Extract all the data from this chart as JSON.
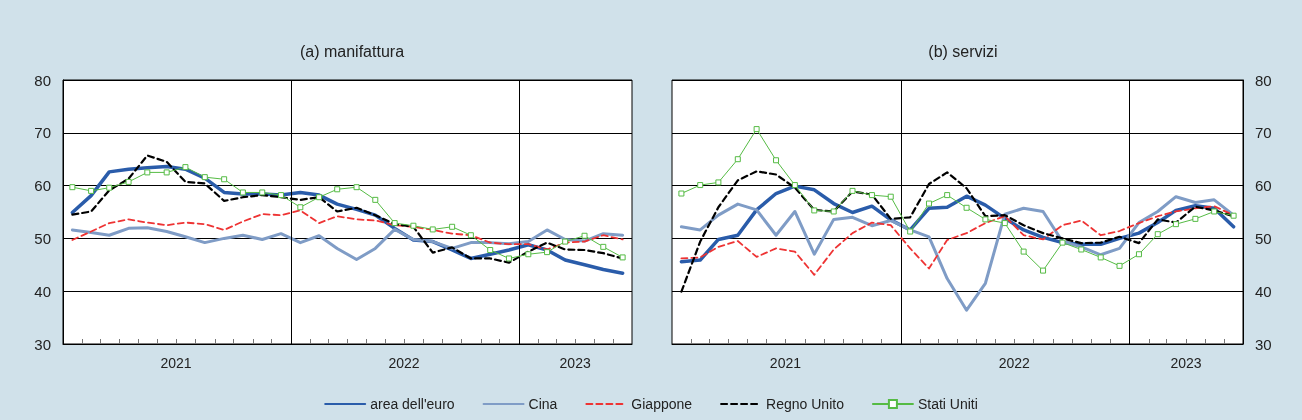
{
  "chart_data": [
    {
      "type": "line",
      "title": "(a) manifattura",
      "legend": "bottom",
      "grid": "y",
      "xlim": [
        "2021-01-01",
        "2023-07-01"
      ],
      "ylim": [
        30,
        80
      ],
      "yticks": [
        30,
        40,
        50,
        60,
        70,
        80
      ],
      "xticks": [
        {
          "value": "2021-07-01",
          "label": "2021"
        },
        {
          "value": "2022-07-01",
          "label": "2022"
        },
        {
          "value": "2023-04-01",
          "label": "2023"
        },
        {
          "value": "2021-02-01",
          "label": null
        },
        {
          "value": "2021-03-01",
          "label": null
        },
        {
          "value": "2021-04-01",
          "label": null
        },
        {
          "value": "2021-05-01",
          "label": null
        },
        {
          "value": "2021-06-01",
          "label": null
        },
        {
          "value": "2021-08-01",
          "label": null
        },
        {
          "value": "2021-09-01",
          "label": null
        },
        {
          "value": "2021-10-01",
          "label": null
        },
        {
          "value": "2021-11-01",
          "label": null
        },
        {
          "value": "2021-12-01",
          "label": null
        },
        {
          "value": "2022-02-01",
          "label": null
        },
        {
          "value": "2022-03-01",
          "label": null
        },
        {
          "value": "2022-04-01",
          "label": null
        },
        {
          "value": "2022-05-01",
          "label": null
        },
        {
          "value": "2022-06-01",
          "label": null
        },
        {
          "value": "2022-08-01",
          "label": null
        },
        {
          "value": "2022-09-01",
          "label": null
        },
        {
          "value": "2022-10-01",
          "label": null
        },
        {
          "value": "2022-11-01",
          "label": null
        },
        {
          "value": "2022-12-01",
          "label": null
        },
        {
          "value": "2023-02-01",
          "label": null
        },
        {
          "value": "2023-03-01",
          "label": null
        },
        {
          "value": "2023-05-01",
          "label": null
        },
        {
          "value": "2023-06-01",
          "label": null
        }
      ],
      "ref_lines": [
        {
          "axis": "x",
          "value": "2022-01-01",
          "color": "#000000"
        },
        {
          "axis": "x",
          "value": "2023-01-01",
          "color": "#000000"
        }
      ],
      "x": [
        "2021-01-16",
        "2021-02-15",
        "2021-03-16",
        "2021-04-16",
        "2021-05-16",
        "2021-06-16",
        "2021-07-16",
        "2021-08-16",
        "2021-09-16",
        "2021-10-16",
        "2021-11-16",
        "2021-12-16",
        "2022-01-16",
        "2022-02-15",
        "2022-03-16",
        "2022-04-16",
        "2022-05-16",
        "2022-06-16",
        "2022-07-16",
        "2022-08-16",
        "2022-09-16",
        "2022-10-16",
        "2022-11-16",
        "2022-12-16",
        "2023-01-16",
        "2023-02-15",
        "2023-03-16",
        "2023-04-16",
        "2023-05-16",
        "2023-06-16"
      ],
      "series": [
        {
          "name": "area dell'euro",
          "color": "#2a5caa",
          "line_style": "solid",
          "marker": "none",
          "values": [
            54.9,
            58.1,
            62.6,
            63.1,
            63.4,
            63.6,
            63.1,
            61.4,
            58.7,
            58.4,
            58.4,
            58.2,
            58.7,
            58.2,
            56.5,
            55.5,
            54.4,
            51.9,
            49.7,
            49.4,
            47.8,
            46.2,
            47.0,
            47.8,
            48.8,
            47.8,
            45.9,
            45.0,
            44.1,
            43.4
          ]
        },
        {
          "name": "Cina",
          "color": "#7f9cc6",
          "line_style": "solid",
          "marker": "none",
          "values": [
            51.6,
            51.1,
            50.6,
            51.9,
            52.0,
            51.3,
            50.3,
            49.2,
            50.0,
            50.6,
            49.8,
            50.9,
            49.2,
            50.5,
            48.1,
            46.0,
            48.1,
            51.7,
            49.8,
            49.4,
            48.1,
            49.2,
            49.2,
            49.0,
            49.4,
            51.6,
            49.8,
            49.5,
            50.9,
            50.6
          ]
        },
        {
          "name": "Giappone",
          "color": "#ee3333",
          "line_style": "dashed",
          "marker": "none",
          "values": [
            49.7,
            51.3,
            52.9,
            53.6,
            53.0,
            52.5,
            53.0,
            52.7,
            51.6,
            53.2,
            54.6,
            54.4,
            55.3,
            52.9,
            54.2,
            53.6,
            53.4,
            52.5,
            52.2,
            51.6,
            50.9,
            50.6,
            49.2,
            48.9,
            48.9,
            47.9,
            49.2,
            49.4,
            50.6,
            49.8
          ]
        },
        {
          "name": "Regno Unito",
          "color": "#000000",
          "line_style": "dashed",
          "marker": "none",
          "values": [
            54.5,
            55.1,
            59.1,
            61.3,
            65.7,
            64.5,
            60.7,
            60.4,
            57.1,
            57.8,
            58.2,
            57.8,
            57.3,
            57.8,
            55.1,
            55.8,
            54.4,
            52.7,
            52.2,
            47.3,
            48.3,
            46.2,
            46.2,
            45.4,
            47.5,
            49.2,
            47.9,
            47.8,
            47.2,
            46.2
          ]
        },
        {
          "name": "Stati Uniti",
          "color": "#55bb44",
          "line_style": "solid",
          "marker": "square",
          "values": [
            59.7,
            59.0,
            59.6,
            60.7,
            62.5,
            62.5,
            63.5,
            61.6,
            61.2,
            58.7,
            58.7,
            58.2,
            55.9,
            57.8,
            59.3,
            59.7,
            57.3,
            52.9,
            52.4,
            51.7,
            52.2,
            50.6,
            47.8,
            46.2,
            47.0,
            47.4,
            49.4,
            50.5,
            48.4,
            46.4
          ]
        }
      ]
    },
    {
      "type": "line",
      "title": "(b) servizi",
      "grid": "y",
      "xlim": [
        "2021-01-01",
        "2023-07-01"
      ],
      "ylim": [
        30,
        80
      ],
      "yticks": [
        30,
        40,
        50,
        60,
        70,
        80
      ],
      "xticks": [
        {
          "value": "2021-07-01",
          "label": "2021"
        },
        {
          "value": "2022-07-01",
          "label": "2022"
        },
        {
          "value": "2023-04-01",
          "label": "2023"
        },
        {
          "value": "2021-02-01",
          "label": null
        },
        {
          "value": "2021-03-01",
          "label": null
        },
        {
          "value": "2021-04-01",
          "label": null
        },
        {
          "value": "2021-05-01",
          "label": null
        },
        {
          "value": "2021-06-01",
          "label": null
        },
        {
          "value": "2021-08-01",
          "label": null
        },
        {
          "value": "2021-09-01",
          "label": null
        },
        {
          "value": "2021-10-01",
          "label": null
        },
        {
          "value": "2021-11-01",
          "label": null
        },
        {
          "value": "2021-12-01",
          "label": null
        },
        {
          "value": "2022-02-01",
          "label": null
        },
        {
          "value": "2022-03-01",
          "label": null
        },
        {
          "value": "2022-04-01",
          "label": null
        },
        {
          "value": "2022-05-01",
          "label": null
        },
        {
          "value": "2022-06-01",
          "label": null
        },
        {
          "value": "2022-08-01",
          "label": null
        },
        {
          "value": "2022-09-01",
          "label": null
        },
        {
          "value": "2022-10-01",
          "label": null
        },
        {
          "value": "2022-11-01",
          "label": null
        },
        {
          "value": "2022-12-01",
          "label": null
        },
        {
          "value": "2023-02-01",
          "label": null
        },
        {
          "value": "2023-03-01",
          "label": null
        },
        {
          "value": "2023-05-01",
          "label": null
        },
        {
          "value": "2023-06-01",
          "label": null
        }
      ],
      "ref_lines": [
        {
          "axis": "x",
          "value": "2022-01-01",
          "color": "#000000"
        },
        {
          "axis": "x",
          "value": "2023-01-01",
          "color": "#000000"
        }
      ],
      "x": [
        "2021-01-16",
        "2021-02-15",
        "2021-03-16",
        "2021-04-16",
        "2021-05-16",
        "2021-06-16",
        "2021-07-16",
        "2021-08-16",
        "2021-09-16",
        "2021-10-16",
        "2021-11-16",
        "2021-12-16",
        "2022-01-16",
        "2022-02-15",
        "2022-03-16",
        "2022-04-16",
        "2022-05-16",
        "2022-06-16",
        "2022-07-16",
        "2022-08-16",
        "2022-09-16",
        "2022-10-16",
        "2022-11-16",
        "2022-12-16",
        "2023-01-16",
        "2023-02-15",
        "2023-03-16",
        "2023-04-16",
        "2023-05-16",
        "2023-06-16"
      ],
      "series": [
        {
          "color": "#2a5caa",
          "line_style": "solid",
          "marker": "none",
          "values": [
            45.6,
            45.9,
            49.8,
            50.6,
            55.4,
            58.5,
            59.9,
            59.2,
            56.6,
            54.9,
            56.1,
            53.5,
            51.6,
            55.7,
            55.9,
            58.0,
            56.3,
            53.8,
            51.6,
            50.2,
            49.2,
            48.9,
            48.9,
            50.0,
            51.0,
            53.0,
            55.3,
            56.2,
            55.7,
            52.2
          ]
        },
        {
          "color": "#7f9cc6",
          "line_style": "solid",
          "marker": "none",
          "values": [
            52.2,
            51.6,
            54.4,
            56.5,
            55.4,
            50.6,
            55.1,
            47.0,
            53.6,
            54.0,
            52.4,
            53.4,
            51.6,
            50.3,
            42.4,
            36.4,
            41.5,
            54.6,
            55.7,
            55.1,
            49.4,
            48.4,
            46.9,
            48.1,
            53.0,
            55.1,
            57.9,
            56.8,
            57.3,
            54.4
          ]
        },
        {
          "color": "#ee3333",
          "line_style": "dashed",
          "marker": "none",
          "values": [
            46.2,
            46.4,
            48.4,
            49.5,
            46.5,
            48.1,
            47.5,
            43.1,
            47.9,
            51.0,
            53.0,
            52.5,
            48.1,
            44.3,
            49.7,
            51.0,
            52.9,
            54.2,
            50.6,
            49.8,
            52.5,
            53.4,
            50.6,
            51.4,
            52.9,
            54.2,
            55.1,
            55.7,
            56.1,
            54.4
          ]
        },
        {
          "color": "#000000",
          "line_style": "dashed",
          "marker": "none",
          "values": [
            39.9,
            49.4,
            55.9,
            61.0,
            62.7,
            62.1,
            59.6,
            55.4,
            55.1,
            58.9,
            58.3,
            53.7,
            54.0,
            60.3,
            62.5,
            59.5,
            54.2,
            54.4,
            52.5,
            51.0,
            50.0,
            49.1,
            49.2,
            50.3,
            49.1,
            53.6,
            53.0,
            56.0,
            55.3,
            54.2
          ]
        },
        {
          "color": "#55bb44",
          "line_style": "solid",
          "marker": "square",
          "values": [
            58.5,
            60.1,
            60.6,
            65.0,
            70.7,
            64.8,
            60.1,
            55.3,
            55.1,
            59.0,
            58.2,
            57.9,
            51.3,
            56.6,
            58.2,
            55.8,
            53.6,
            52.9,
            47.5,
            43.9,
            49.2,
            47.9,
            46.4,
            44.8,
            47.0,
            50.8,
            52.7,
            53.7,
            55.1,
            54.3
          ]
        }
      ]
    }
  ]
}
